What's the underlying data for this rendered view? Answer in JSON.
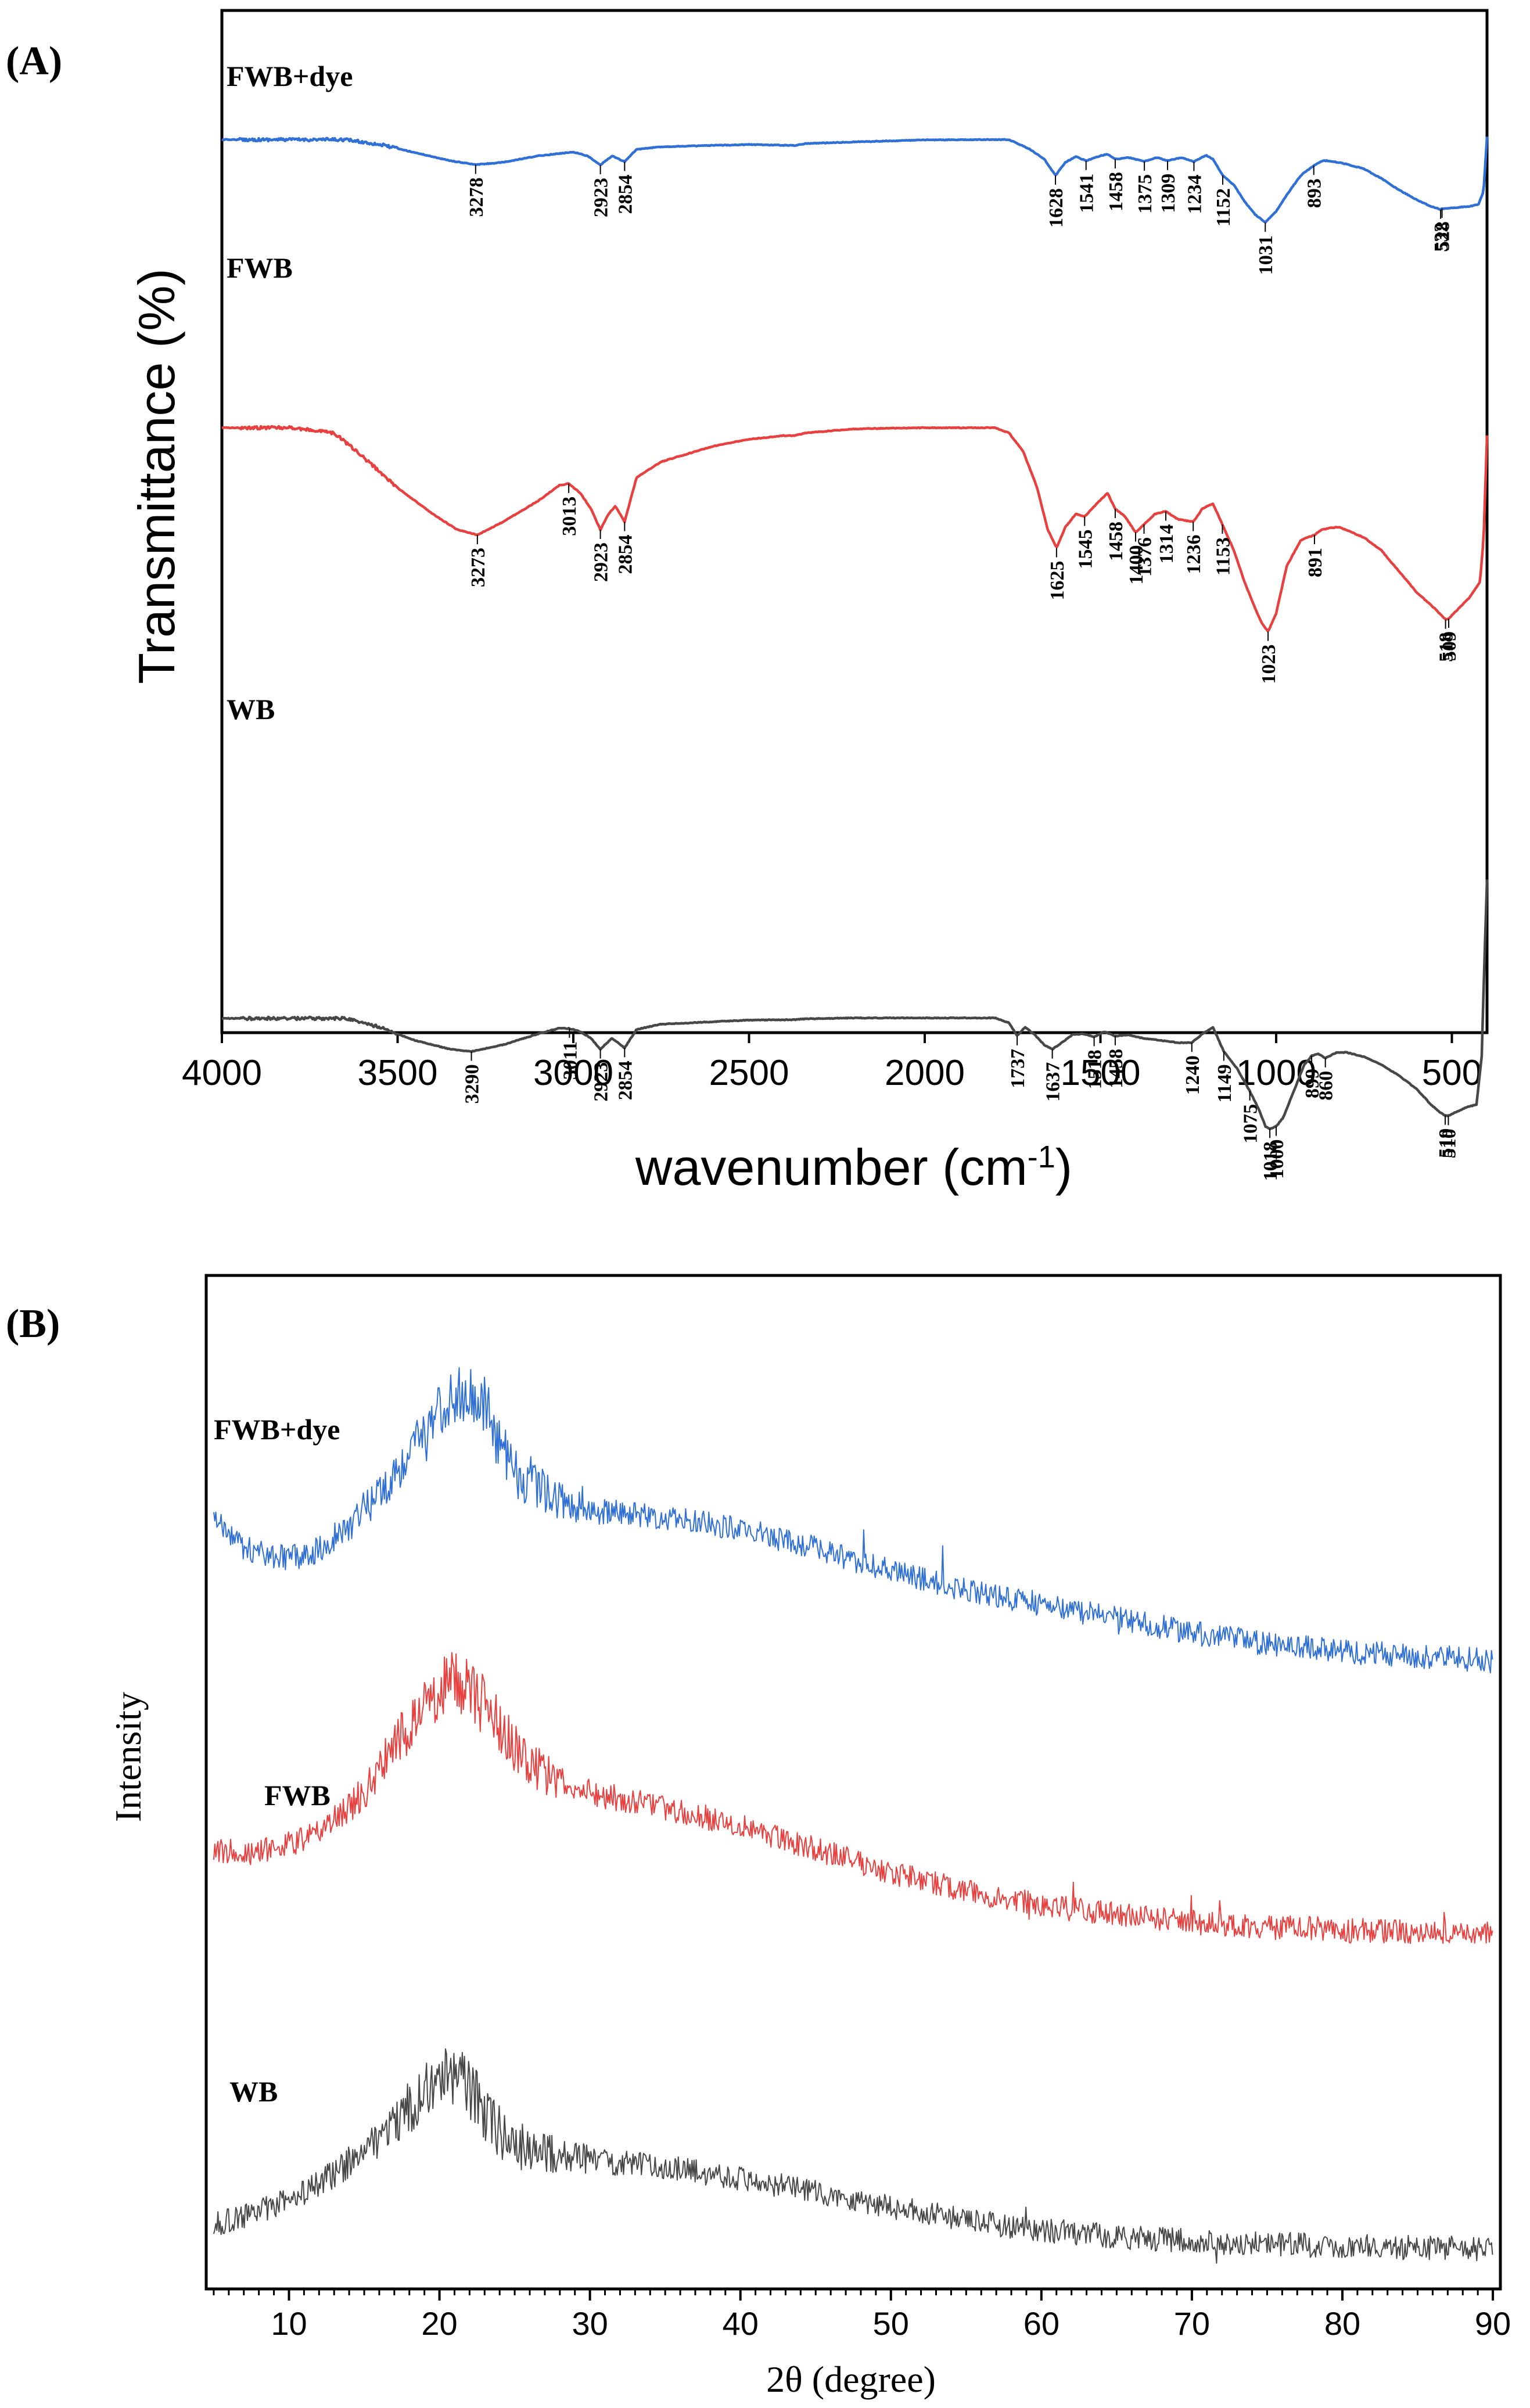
{
  "colors": {
    "blue": "#2f6fd6",
    "red": "#e8403f",
    "gray": "#474747"
  },
  "chart_data": [
    {
      "type": "line",
      "panel_label": "(A)",
      "title": "",
      "xlabel": "wavenumber (cm",
      "xlabel_sup": "-1",
      "xlabel_close": ")",
      "ylabel": "Transmittance (%)",
      "xlim": [
        4000,
        400
      ],
      "ylim": [
        0,
        100
      ],
      "xticks": [
        "4000",
        "3500",
        "3000",
        "2500",
        "2000",
        "1500",
        "1000",
        "500"
      ],
      "series": [
        {
          "name": "FWB+dye",
          "color": "#2f6fd6",
          "x": [
            4000,
            3800,
            3650,
            3550,
            3450,
            3350,
            3278,
            3200,
            3100,
            3000,
            2960,
            2923,
            2890,
            2854,
            2820,
            2750,
            2500,
            2370,
            2340,
            2200,
            2000,
            1800,
            1760,
            1700,
            1660,
            1628,
            1600,
            1570,
            1541,
            1500,
            1480,
            1458,
            1420,
            1375,
            1340,
            1309,
            1270,
            1234,
            1200,
            1180,
            1152,
            1120,
            1090,
            1060,
            1031,
            1000,
            970,
            930,
            893,
            870,
            850,
            800,
            750,
            700,
            650,
            600,
            560,
            532,
            528,
            500,
            470,
            450,
            425,
            410,
            400
          ],
          "y": [
            91,
            91,
            91,
            89.5,
            87,
            84.5,
            83.3,
            84,
            86,
            87.2,
            86,
            83.2,
            86,
            84.2,
            88,
            88.8,
            89.5,
            89.2,
            89.8,
            90.3,
            90.9,
            91,
            91,
            88,
            85,
            80,
            84,
            85.8,
            84.5,
            86,
            86.5,
            85,
            85.5,
            84.3,
            85.5,
            84.5,
            85.5,
            84.2,
            86.2,
            85,
            80,
            77,
            72,
            68,
            65.5,
            69,
            74,
            80,
            83,
            84.5,
            84.5,
            83.5,
            82,
            79,
            75.5,
            72.5,
            70.5,
            69.5,
            69.8,
            70,
            70.3,
            70.5,
            71,
            75,
            92
          ],
          "peaks": [
            {
              "x": 3278,
              "label": "3278"
            },
            {
              "x": 2923,
              "label": "2923"
            },
            {
              "x": 2854,
              "label": "2854"
            },
            {
              "x": 1628,
              "label": "1628"
            },
            {
              "x": 1541,
              "label": "1541"
            },
            {
              "x": 1458,
              "label": "1458"
            },
            {
              "x": 1375,
              "label": "1375"
            },
            {
              "x": 1309,
              "label": "1309"
            },
            {
              "x": 1234,
              "label": "1234"
            },
            {
              "x": 1152,
              "label": "1152"
            },
            {
              "x": 1031,
              "label": "1031"
            },
            {
              "x": 893,
              "label": "893"
            },
            {
              "x": 532,
              "label": "532"
            },
            {
              "x": 528,
              "label": "528"
            }
          ]
        },
        {
          "name": "FWB",
          "color": "#e8403f",
          "x": [
            4000,
            3800,
            3680,
            3600,
            3500,
            3400,
            3330,
            3273,
            3200,
            3100,
            3040,
            3013,
            2980,
            2950,
            2923,
            2900,
            2880,
            2854,
            2820,
            2750,
            2600,
            2500,
            2400,
            2370,
            2340,
            2200,
            2000,
            1800,
            1760,
            1720,
            1680,
            1650,
            1625,
            1600,
            1570,
            1545,
            1510,
            1480,
            1458,
            1430,
            1400,
            1376,
            1345,
            1314,
            1280,
            1236,
            1210,
            1180,
            1153,
            1120,
            1090,
            1060,
            1040,
            1023,
            1000,
            970,
            930,
            891,
            870,
            850,
            820,
            750,
            700,
            650,
            600,
            550,
            518,
            509,
            480,
            450,
            420,
            410,
            400
          ],
          "y": [
            71.5,
            71.5,
            70.5,
            66,
            60,
            55,
            52,
            51,
            53.5,
            57.5,
            60.5,
            60.8,
            59,
            56,
            52,
            55,
            56.5,
            53.5,
            62,
            65,
            68,
            69.3,
            70,
            70,
            70.5,
            71.3,
            71.5,
            71.5,
            70.5,
            67,
            60,
            52,
            48.5,
            52.5,
            55,
            54.5,
            57,
            59,
            56,
            54.5,
            51.5,
            53,
            55,
            55.5,
            54,
            53.5,
            56,
            57,
            53,
            48,
            42,
            37,
            34,
            32.5,
            36,
            45,
            50,
            51,
            52,
            52.3,
            52.5,
            50.5,
            48,
            44,
            40,
            37,
            34.8,
            35,
            37,
            39,
            42,
            50,
            70
          ],
          "peaks": [
            {
              "x": 3273,
              "label": "3273"
            },
            {
              "x": 3013,
              "label": "3013"
            },
            {
              "x": 2923,
              "label": "2923"
            },
            {
              "x": 2854,
              "label": "2854"
            },
            {
              "x": 1625,
              "label": "1625"
            },
            {
              "x": 1545,
              "label": "1545"
            },
            {
              "x": 1458,
              "label": "1458"
            },
            {
              "x": 1400,
              "label": "1400"
            },
            {
              "x": 1376,
              "label": "1376"
            },
            {
              "x": 1314,
              "label": "1314"
            },
            {
              "x": 1236,
              "label": "1236"
            },
            {
              "x": 1153,
              "label": "1153"
            },
            {
              "x": 891,
              "label": "891"
            },
            {
              "x": 1023,
              "label": "1023"
            },
            {
              "x": 518,
              "label": "518"
            },
            {
              "x": 509,
              "label": "509"
            }
          ]
        },
        {
          "name": "WB",
          "color": "#474747",
          "x": [
            4000,
            3800,
            3650,
            3550,
            3450,
            3350,
            3290,
            3200,
            3100,
            3040,
            3011,
            2980,
            2950,
            2923,
            2890,
            2854,
            2820,
            2750,
            2500,
            2370,
            2340,
            2200,
            2000,
            1800,
            1760,
            1737,
            1715,
            1690,
            1660,
            1637,
            1610,
            1580,
            1550,
            1518,
            1490,
            1458,
            1420,
            1380,
            1330,
            1280,
            1240,
            1210,
            1180,
            1149,
            1110,
            1075,
            1050,
            1030,
            1018,
            1000,
            980,
            950,
            920,
            899,
            880,
            860,
            830,
            800,
            750,
            700,
            650,
            600,
            560,
            530,
            519,
            510,
            490,
            460,
            430,
            415,
            408,
            400
          ],
          "y": [
            28.5,
            28.5,
            28.5,
            26.5,
            23.5,
            21.5,
            21,
            22.5,
            25,
            26.3,
            26.2,
            25.5,
            24,
            21.5,
            24,
            21.8,
            26,
            27.2,
            28.1,
            28.2,
            28.4,
            28.6,
            28.6,
            28.6,
            27.5,
            24.5,
            26.5,
            25,
            22.5,
            21.5,
            23,
            24.8,
            25,
            24.3,
            25.5,
            24.5,
            24.8,
            24,
            23.5,
            23,
            23,
            25,
            26.5,
            21,
            17,
            12,
            8,
            4,
            3.5,
            4,
            6,
            12,
            18,
            20,
            20.5,
            19.5,
            20.7,
            20.8,
            19.8,
            18,
            15.5,
            12.5,
            9,
            7,
            6.5,
            6.4,
            7.2,
            8.3,
            9,
            20,
            40,
            60
          ],
          "peaks": [
            {
              "x": 3290,
              "label": "3290"
            },
            {
              "x": 3011,
              "label": "3011"
            },
            {
              "x": 2923,
              "label": "2923"
            },
            {
              "x": 2854,
              "label": "2854"
            },
            {
              "x": 1737,
              "label": "1737"
            },
            {
              "x": 1637,
              "label": "1637"
            },
            {
              "x": 1518,
              "label": "1518"
            },
            {
              "x": 1458,
              "label": "1458"
            },
            {
              "x": 1240,
              "label": "1240"
            },
            {
              "x": 1149,
              "label": "1149"
            },
            {
              "x": 1075,
              "label": "1075"
            },
            {
              "x": 1018,
              "label": "1018"
            },
            {
              "x": 1000,
              "label": "1000"
            },
            {
              "x": 899,
              "label": "899"
            },
            {
              "x": 860,
              "label": "860"
            },
            {
              "x": 519,
              "label": "519"
            },
            {
              "x": 510,
              "label": "510"
            }
          ]
        }
      ]
    },
    {
      "type": "line",
      "panel_label": "(B)",
      "title": "",
      "xlabel": "2θ (degree)",
      "ylabel": "Intensity",
      "xlim": [
        4.5,
        90.5
      ],
      "ylim": [
        0,
        100
      ],
      "xticks": [
        "10",
        "20",
        "30",
        "40",
        "50",
        "60",
        "70",
        "80",
        "90"
      ],
      "series": [
        {
          "name": "FWB+dye",
          "color": "#2f6fd6",
          "x": [
            5,
            7,
            9,
            11,
            13,
            15,
            17,
            19,
            20,
            21,
            22,
            23,
            24,
            25,
            26,
            27,
            28,
            30,
            33,
            36,
            40,
            45,
            50,
            55,
            60,
            65,
            70,
            75,
            80,
            85,
            90
          ],
          "y": [
            78,
            75,
            74,
            74,
            76,
            79,
            83,
            87,
            89,
            91,
            92,
            90,
            86,
            83,
            82,
            81,
            80,
            79,
            78.5,
            78,
            77,
            75,
            72.5,
            70.5,
            69,
            67.5,
            66,
            64.8,
            64,
            63.5,
            63
          ],
          "noise": 1.3
        },
        {
          "name": "FWB",
          "color": "#e8403f",
          "x": [
            5,
            7,
            9,
            11,
            13,
            15,
            16,
            17,
            18,
            19,
            20,
            21,
            22,
            23,
            24,
            25,
            26,
            27,
            28,
            30,
            33,
            36,
            40,
            45,
            50,
            55,
            60,
            65,
            70,
            75,
            80,
            85,
            90
          ],
          "y": [
            43,
            42.5,
            43,
            44,
            46,
            49,
            51.5,
            54,
            56,
            58,
            60,
            61,
            60,
            58,
            56,
            54,
            52,
            51,
            50,
            49,
            48,
            47,
            45.5,
            43,
            40.5,
            38.5,
            37,
            36,
            35.2,
            34.7,
            34.4,
            34.2,
            34
          ],
          "noise": 1.3
        },
        {
          "name": "WB",
          "color": "#474747",
          "x": [
            5,
            7,
            9,
            11,
            13,
            15,
            17,
            19,
            20,
            21,
            22,
            23,
            24,
            25,
            26,
            28,
            30,
            33,
            36,
            40,
            45,
            50,
            55,
            60,
            65,
            70,
            75,
            80,
            85,
            90
          ],
          "y": [
            3,
            4,
            5,
            6.5,
            8.5,
            11,
            14,
            17,
            18.5,
            19,
            17.5,
            15,
            13,
            11.5,
            11,
            10.5,
            10,
            9.5,
            9,
            8,
            6.5,
            5,
            3.5,
            2.5,
            1.8,
            1.3,
            1,
            0.8,
            0.6,
            0.5
          ],
          "noise": 1.3
        }
      ]
    }
  ]
}
